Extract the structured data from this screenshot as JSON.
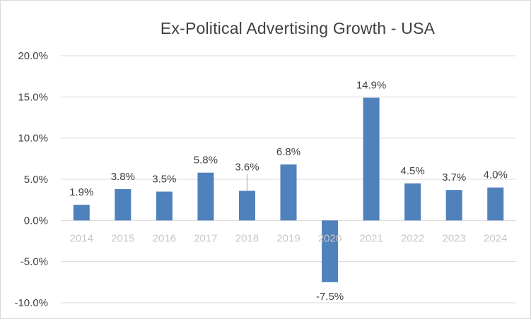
{
  "chart_data": {
    "type": "bar",
    "title": "Ex-Political Advertising Growth - USA",
    "xlabel": "",
    "ylabel": "",
    "categories": [
      "2014",
      "2015",
      "2016",
      "2017",
      "2018",
      "2019",
      "2020",
      "2021",
      "2022",
      "2023",
      "2024"
    ],
    "values": [
      1.9,
      3.8,
      3.5,
      5.8,
      3.6,
      6.8,
      -7.5,
      14.9,
      4.5,
      3.7,
      4.0
    ],
    "data_labels": [
      "1.9%",
      "3.8%",
      "3.5%",
      "5.8%",
      "3.6%",
      "6.8%",
      "-7.5%",
      "14.9%",
      "4.5%",
      "3.7%",
      "4.0%"
    ],
    "ylim": [
      -10,
      20
    ],
    "yticks": [
      20,
      15,
      10,
      5,
      0,
      -5,
      -10
    ],
    "ytick_labels": [
      "20.0%",
      "15.0%",
      "10.0%",
      "5.0%",
      "0.0%",
      "-5.0%",
      "-10.0%"
    ],
    "grid": true,
    "legend": "none",
    "bar_color": "#4f81bd",
    "grid_color": "#d9d9d9"
  }
}
